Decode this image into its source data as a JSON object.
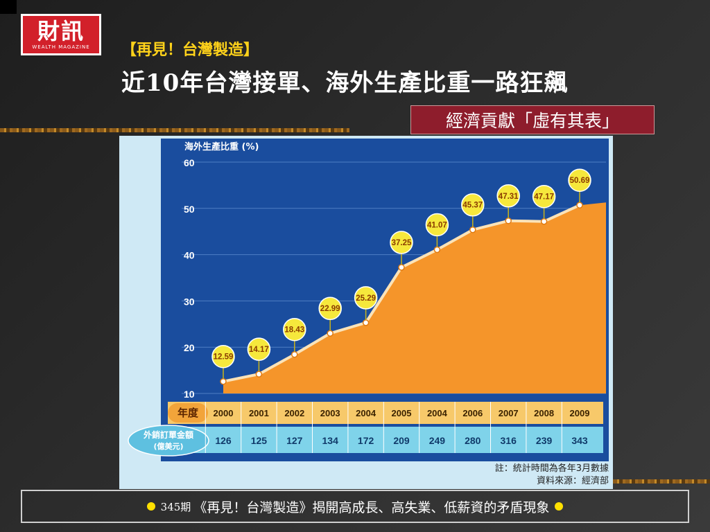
{
  "logo": {
    "main": "財訊",
    "sub": "WEALTH MAGAZINE"
  },
  "header": {
    "subtitle": "【再見！台灣製造】",
    "title": "近10年台灣接單、海外生產比重一路狂飆",
    "tag": "經濟貢獻「虛有其表」"
  },
  "chart_data": {
    "type": "area",
    "ylabel": "海外生產比重 (%)",
    "ylim": [
      10,
      60
    ],
    "yticks": [
      10,
      20,
      30,
      40,
      50,
      60
    ],
    "grid": true,
    "x": [
      "2000",
      "2001",
      "2002",
      "2003",
      "2004",
      "2005",
      "2004",
      "2006",
      "2007",
      "2008",
      "2009"
    ],
    "values": [
      12.59,
      14.17,
      18.43,
      22.99,
      25.29,
      37.25,
      41.07,
      45.37,
      47.31,
      47.17,
      50.69
    ],
    "value_labels": [
      "12.59",
      "14.17",
      "18.43",
      "22.99",
      "25.29",
      "37.25",
      "41.07",
      "45.37",
      "47.31",
      "47.17",
      "50.69"
    ],
    "year_row_label": "年度",
    "orders_row_label": [
      "外銷訂單金額",
      "(億美元)"
    ],
    "orders": [
      "126",
      "125",
      "127",
      "134",
      "172",
      "209",
      "249",
      "280",
      "316",
      "239",
      "343"
    ],
    "note": "註：統計時間為各年3月數據",
    "source": "資料來源：經濟部",
    "colors": {
      "fill": "#f5952a",
      "line": "#fbe3b8",
      "bubble": "#f6e83c",
      "background": "#1a4d9e"
    }
  },
  "footer": {
    "issue": "345期",
    "text": "《再見！台灣製造》揭開高成長、高失業、低薪資的矛盾現象"
  }
}
